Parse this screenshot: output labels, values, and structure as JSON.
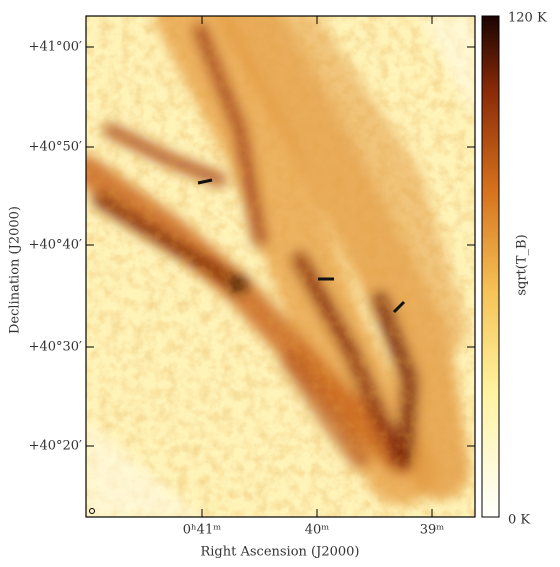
{
  "figure": {
    "x_label": "Right Ascension (J2000)",
    "y_label": "Declination (J2000)",
    "x_ticks": [
      "0ʰ41ᵐ",
      "40ᵐ",
      "39ᵐ"
    ],
    "y_ticks": [
      "+41°00′",
      "+40°50′",
      "+40°40′",
      "+40°30′",
      "+40°20′"
    ],
    "colorbar": {
      "label": "sqrt(T_B)",
      "max_label": "120 K",
      "min_label": "0 K"
    }
  }
}
